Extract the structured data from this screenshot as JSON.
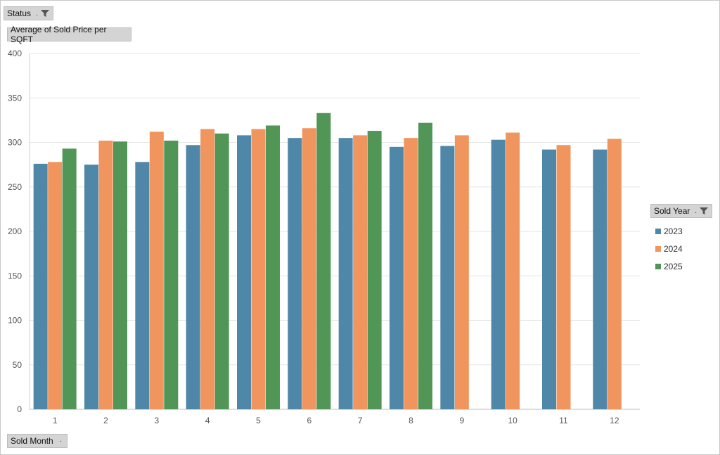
{
  "filters": {
    "status_label": "Status",
    "value_label": "Average of Sold Price per SQFT",
    "axis_field_label": "Sold Month",
    "legend_field_label": "Sold Year",
    "filter_icon": "funnel-filter-icon",
    "dropdown_icon": "dropdown-dot-icon"
  },
  "colors": {
    "2023": "#4f87a8",
    "2024": "#f0955e",
    "2025": "#519657"
  },
  "chart_data": {
    "type": "bar",
    "categories": [
      "1",
      "2",
      "3",
      "4",
      "5",
      "6",
      "7",
      "8",
      "9",
      "10",
      "11",
      "12"
    ],
    "series": [
      {
        "name": "2023",
        "values": [
          276,
          275,
          278,
          297,
          308,
          305,
          305,
          295,
          296,
          303,
          292,
          292
        ]
      },
      {
        "name": "2024",
        "values": [
          278,
          302,
          312,
          315,
          315,
          316,
          308,
          305,
          308,
          311,
          297,
          304
        ]
      },
      {
        "name": "2025",
        "values": [
          293,
          301,
          302,
          310,
          319,
          333,
          313,
          322,
          null,
          null,
          null,
          null
        ]
      }
    ],
    "ylim": [
      0,
      400
    ],
    "yticks": [
      "0",
      "50",
      "100",
      "150",
      "200",
      "250",
      "300",
      "350",
      "400"
    ],
    "grid": true,
    "legend_position": "right"
  }
}
